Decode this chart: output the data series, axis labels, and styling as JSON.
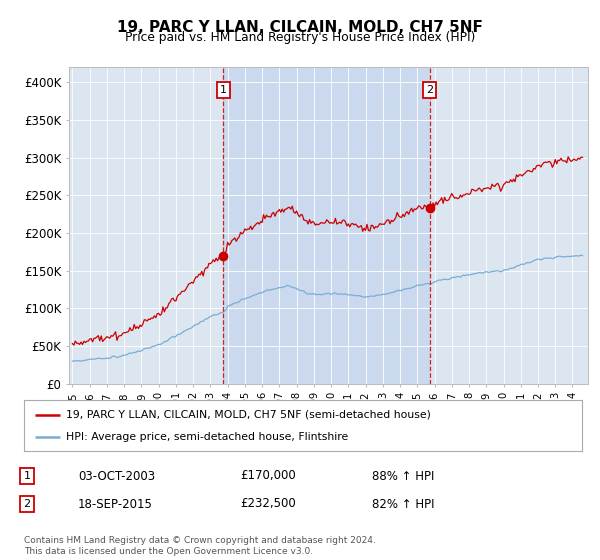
{
  "title": "19, PARC Y LLAN, CILCAIN, MOLD, CH7 5NF",
  "subtitle": "Price paid vs. HM Land Registry's House Price Index (HPI)",
  "ylim": [
    0,
    420000
  ],
  "yticks": [
    0,
    50000,
    100000,
    150000,
    200000,
    250000,
    300000,
    350000,
    400000
  ],
  "ytick_labels": [
    "£0",
    "£50K",
    "£100K",
    "£150K",
    "£200K",
    "£250K",
    "£300K",
    "£350K",
    "£400K"
  ],
  "bg_color": "#dce6f1",
  "shade_color": "#c8d8ee",
  "red_color": "#cc0000",
  "blue_color": "#7aadd4",
  "sale1_year_f": 2003.75,
  "sale1_price": 170000,
  "sale1_date": "03-OCT-2003",
  "sale1_pct": "88%",
  "sale2_year_f": 2015.71,
  "sale2_price": 232500,
  "sale2_date": "18-SEP-2015",
  "sale2_pct": "82%",
  "xmin": 1994.8,
  "xmax": 2024.9,
  "legend_label1": "19, PARC Y LLAN, CILCAIN, MOLD, CH7 5NF (semi-detached house)",
  "legend_label2": "HPI: Average price, semi-detached house, Flintshire",
  "footer": "Contains HM Land Registry data © Crown copyright and database right 2024.\nThis data is licensed under the Open Government Licence v3.0."
}
